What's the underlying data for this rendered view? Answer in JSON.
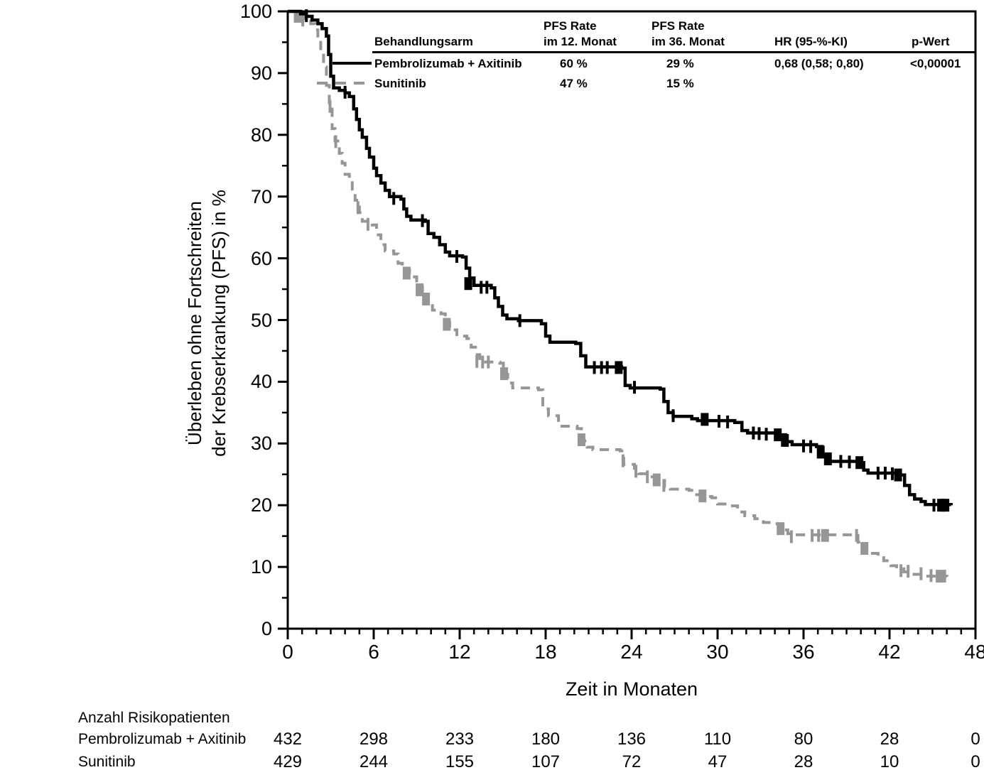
{
  "legend_table": {
    "headers": {
      "arm": "Behandlungsarm",
      "pfs12_line1": "PFS Rate",
      "pfs12_line2": "im 12. Monat",
      "pfs36_line1": "PFS Rate",
      "pfs36_line2": "im 36. Monat",
      "hr": "HR (95-%-KI)",
      "p": "p-Wert"
    },
    "rows": [
      {
        "label": "Pembrolizumab + Axitinib",
        "pfs12": "60 %",
        "pfs36": "29 %",
        "hr": "0,68 (0,58; 0,80)",
        "p": "<0,00001",
        "line_style": "solid",
        "color": "#000000"
      },
      {
        "label": "Sunitinib",
        "pfs12": "47 %",
        "pfs36": "15 %",
        "hr": "",
        "p": "",
        "line_style": "dashed",
        "color": "#969696"
      }
    ]
  },
  "axes": {
    "x": {
      "label": "Zeit in Monaten",
      "min": 0,
      "max": 48,
      "major_ticks": [
        0,
        6,
        12,
        18,
        24,
        30,
        36,
        42,
        48
      ],
      "minor_step": 1
    },
    "y": {
      "label_line1": "Überleben ohne Fortschreiten",
      "label_line2": "der Krebserkrankung (PFS) in %",
      "min": 0,
      "max": 100,
      "major_ticks": [
        0,
        10,
        20,
        30,
        40,
        50,
        60,
        70,
        80,
        90,
        100
      ],
      "minor_step": 5
    }
  },
  "chart_data": {
    "type": "line",
    "subtype": "kaplan-meier-step",
    "title": "",
    "xlabel": "Zeit in Monaten",
    "ylabel": "Überleben ohne Fortschreiten der Krebserkrankung (PFS) in %",
    "xlim": [
      0,
      48
    ],
    "ylim": [
      0,
      100
    ],
    "grid": false,
    "legend_position": "top",
    "series": [
      {
        "name": "Sunitinib",
        "color": "#969696",
        "style": "dashed",
        "pfs_rate_12m": "47 %",
        "pfs_rate_36m": "15 %",
        "points": [
          [
            0,
            100
          ],
          [
            0.8,
            99.4
          ],
          [
            1.2,
            98.8
          ],
          [
            1.6,
            98
          ],
          [
            1.9,
            97
          ],
          [
            2.1,
            96
          ],
          [
            2.3,
            93.5
          ],
          [
            2.5,
            91
          ],
          [
            2.7,
            88
          ],
          [
            2.9,
            84.5
          ],
          [
            3.1,
            81
          ],
          [
            3.3,
            79
          ],
          [
            3.6,
            77
          ],
          [
            3.8,
            75.4
          ],
          [
            4.0,
            73.6
          ],
          [
            4.3,
            73
          ],
          [
            4.5,
            71.2
          ],
          [
            4.7,
            69.4
          ],
          [
            5.0,
            67.4
          ],
          [
            5.2,
            66
          ],
          [
            5.9,
            65.4
          ],
          [
            6.2,
            63.8
          ],
          [
            6.5,
            62.2
          ],
          [
            6.8,
            61.2
          ],
          [
            7.4,
            60.7
          ],
          [
            7.7,
            59.2
          ],
          [
            8.0,
            58.2
          ],
          [
            8.5,
            57
          ],
          [
            9.0,
            55.4
          ],
          [
            9.4,
            54
          ],
          [
            9.8,
            52.8
          ],
          [
            10.1,
            51.6
          ],
          [
            10.7,
            51
          ],
          [
            11.0,
            49.6
          ],
          [
            11.3,
            48.4
          ],
          [
            11.8,
            47.4
          ],
          [
            12.5,
            47
          ],
          [
            12.8,
            45.6
          ],
          [
            13.1,
            44.4
          ],
          [
            13.4,
            43.2
          ],
          [
            14.8,
            43
          ],
          [
            15.05,
            41.2
          ],
          [
            15.35,
            39.8
          ],
          [
            15.7,
            39
          ],
          [
            17.5,
            38.7
          ],
          [
            17.8,
            35.6
          ],
          [
            18.2,
            34.5
          ],
          [
            18.9,
            32.8
          ],
          [
            20.2,
            32.4
          ],
          [
            20.5,
            30.4
          ],
          [
            20.9,
            29.4
          ],
          [
            21.3,
            29
          ],
          [
            23.2,
            28.8
          ],
          [
            23.45,
            26.6
          ],
          [
            24.2,
            26
          ],
          [
            24.5,
            25.1
          ],
          [
            25.2,
            24.6
          ],
          [
            25.8,
            24
          ],
          [
            26.3,
            23
          ],
          [
            26.7,
            22.6
          ],
          [
            28.0,
            22.4
          ],
          [
            28.3,
            21.7
          ],
          [
            28.9,
            21.4
          ],
          [
            29.6,
            21.2
          ],
          [
            30.0,
            20.2
          ],
          [
            30.9,
            19.9
          ],
          [
            31.4,
            18.9
          ],
          [
            31.9,
            18.3
          ],
          [
            32.6,
            17.8
          ],
          [
            33.2,
            17.2
          ],
          [
            33.9,
            17
          ],
          [
            34.4,
            16
          ],
          [
            34.9,
            15.4
          ],
          [
            35.4,
            15.2
          ],
          [
            39.4,
            15.1
          ],
          [
            39.8,
            14
          ],
          [
            40.1,
            12.9
          ],
          [
            40.4,
            12.2
          ],
          [
            41.2,
            11.8
          ],
          [
            41.6,
            11
          ],
          [
            42.1,
            10.2
          ],
          [
            42.5,
            9.7
          ],
          [
            43.0,
            9.2
          ],
          [
            43.6,
            8.8
          ],
          [
            44.3,
            8.5
          ],
          [
            46.0,
            8.4
          ]
        ],
        "censor_marks": [
          [
            0.7,
            99.2,
            1
          ],
          [
            1.05,
            98.6,
            0
          ],
          [
            2.95,
            84.6,
            0
          ],
          [
            3.35,
            78.9,
            0
          ],
          [
            4.9,
            68.2,
            0
          ],
          [
            5.6,
            65.5,
            0
          ],
          [
            8.3,
            57.6,
            1
          ],
          [
            9.2,
            54.9,
            1
          ],
          [
            9.65,
            53.4,
            1
          ],
          [
            11.1,
            49.3,
            1
          ],
          [
            13.2,
            43.3,
            0
          ],
          [
            13.6,
            43.2,
            0
          ],
          [
            14.0,
            43.2,
            0
          ],
          [
            15.1,
            41.3,
            1
          ],
          [
            20.5,
            30.6,
            1
          ],
          [
            23.4,
            27.2,
            0
          ],
          [
            24.3,
            25.5,
            0
          ],
          [
            25.1,
            24.6,
            0
          ],
          [
            25.75,
            24.1,
            1
          ],
          [
            26.25,
            23.2,
            0
          ],
          [
            28.95,
            21.5,
            1
          ],
          [
            34.4,
            16.2,
            1
          ],
          [
            35.15,
            14.9,
            0
          ],
          [
            36.6,
            15.1,
            0
          ],
          [
            37.05,
            15.1,
            0
          ],
          [
            37.5,
            15.1,
            1
          ],
          [
            39.7,
            15.1,
            0
          ],
          [
            40.25,
            13,
            1
          ],
          [
            42.8,
            9.4,
            0
          ],
          [
            43.3,
            9.3,
            0
          ],
          [
            44.2,
            8.9,
            0
          ],
          [
            44.9,
            8.6,
            0
          ],
          [
            45.5,
            8.5,
            1
          ],
          [
            45.85,
            8.5,
            0
          ]
        ]
      },
      {
        "name": "Pembrolizumab + Axitinib",
        "color": "#000000",
        "style": "solid",
        "pfs_rate_12m": "60 %",
        "pfs_rate_36m": "29 %",
        "hr": "0,68 (0,58; 0,80)",
        "p_value": "<0,00001",
        "points": [
          [
            0,
            100
          ],
          [
            0.9,
            99.6
          ],
          [
            1.3,
            99.2
          ],
          [
            1.7,
            98.6
          ],
          [
            2.1,
            98
          ],
          [
            2.4,
            97.2
          ],
          [
            2.7,
            96
          ],
          [
            2.85,
            93
          ],
          [
            3.0,
            89.5
          ],
          [
            3.2,
            87.6
          ],
          [
            3.6,
            87.2
          ],
          [
            4.0,
            86.8
          ],
          [
            4.3,
            86.2
          ],
          [
            4.6,
            84.2
          ],
          [
            4.8,
            82.5
          ],
          [
            5.0,
            80.8
          ],
          [
            5.2,
            79.6
          ],
          [
            5.5,
            77.8
          ],
          [
            5.7,
            76.4
          ],
          [
            6.0,
            74.6
          ],
          [
            6.2,
            73.4
          ],
          [
            6.5,
            72.2
          ],
          [
            6.8,
            71
          ],
          [
            7.1,
            70
          ],
          [
            7.9,
            69.6
          ],
          [
            8.1,
            68
          ],
          [
            8.3,
            66.8
          ],
          [
            8.6,
            66.2
          ],
          [
            9.6,
            66
          ],
          [
            9.8,
            64
          ],
          [
            10.2,
            63.4
          ],
          [
            10.6,
            62.2
          ],
          [
            11.0,
            61
          ],
          [
            11.3,
            60.4
          ],
          [
            12.2,
            60.2
          ],
          [
            12.45,
            58.4
          ],
          [
            12.7,
            56.8
          ],
          [
            13.0,
            55.6
          ],
          [
            14.2,
            55.2
          ],
          [
            14.45,
            53.6
          ],
          [
            14.7,
            52.2
          ],
          [
            15.0,
            50.8
          ],
          [
            15.3,
            50.2
          ],
          [
            16.1,
            49.9
          ],
          [
            17.7,
            49.4
          ],
          [
            18.0,
            47.4
          ],
          [
            18.3,
            46.4
          ],
          [
            20.1,
            46.2
          ],
          [
            20.45,
            44.2
          ],
          [
            20.8,
            42.4
          ],
          [
            23.3,
            42.2
          ],
          [
            23.55,
            39.4
          ],
          [
            23.9,
            39
          ],
          [
            26.0,
            38.8
          ],
          [
            26.25,
            36.8
          ],
          [
            26.55,
            35
          ],
          [
            26.9,
            34.4
          ],
          [
            28.2,
            34
          ],
          [
            28.6,
            33.7
          ],
          [
            31.2,
            33.4
          ],
          [
            31.7,
            32.1
          ],
          [
            32.1,
            31.7
          ],
          [
            34.3,
            31.4
          ],
          [
            34.75,
            30.3
          ],
          [
            35.2,
            29.8
          ],
          [
            36.9,
            29.5
          ],
          [
            37.3,
            28.3
          ],
          [
            37.8,
            27.1
          ],
          [
            39.9,
            26.9
          ],
          [
            40.2,
            25.7
          ],
          [
            40.5,
            25.2
          ],
          [
            42.7,
            24.9
          ],
          [
            43.05,
            23.2
          ],
          [
            43.4,
            21.7
          ],
          [
            43.75,
            21
          ],
          [
            44.2,
            20.6
          ],
          [
            44.5,
            20.1
          ],
          [
            46.3,
            20
          ]
        ],
        "censor_marks": [
          [
            1.3,
            99.3,
            0
          ],
          [
            4.0,
            86.9,
            0
          ],
          [
            7.4,
            69.7,
            0
          ],
          [
            9.4,
            66.1,
            0
          ],
          [
            11.8,
            60.3,
            0
          ],
          [
            12.6,
            55.9,
            1
          ],
          [
            13.5,
            55.3,
            0
          ],
          [
            13.9,
            55.3,
            0
          ],
          [
            16.2,
            49.9,
            0
          ],
          [
            21.4,
            42.3,
            0
          ],
          [
            21.9,
            42.3,
            0
          ],
          [
            22.3,
            42.3,
            0
          ],
          [
            23.1,
            42.3,
            1
          ],
          [
            24.2,
            39.1,
            0
          ],
          [
            26.9,
            34.5,
            0
          ],
          [
            29.1,
            33.9,
            1
          ],
          [
            30.1,
            33.6,
            0
          ],
          [
            30.7,
            33.5,
            0
          ],
          [
            32.5,
            31.7,
            0
          ],
          [
            32.9,
            31.6,
            0
          ],
          [
            33.4,
            31.5,
            0
          ],
          [
            34.2,
            31.4,
            1
          ],
          [
            34.7,
            30.5,
            1
          ],
          [
            36.0,
            29.6,
            0
          ],
          [
            36.5,
            29.5,
            0
          ],
          [
            37.2,
            28.6,
            1
          ],
          [
            37.7,
            27.5,
            1
          ],
          [
            38.6,
            27.1,
            0
          ],
          [
            39.2,
            27,
            0
          ],
          [
            39.9,
            26.9,
            1
          ],
          [
            41.2,
            25.2,
            0
          ],
          [
            41.7,
            25.2,
            0
          ],
          [
            42.2,
            25.1,
            0
          ],
          [
            42.6,
            24.9,
            1
          ],
          [
            45.1,
            20,
            0
          ],
          [
            45.6,
            20,
            1
          ],
          [
            45.9,
            20,
            1
          ]
        ]
      }
    ]
  },
  "risk_table": {
    "title": "Anzahl Risikopatienten",
    "time_points": [
      0,
      6,
      12,
      18,
      24,
      30,
      36,
      42,
      48
    ],
    "rows": [
      {
        "label": "Pembrolizumab + Axitinib",
        "counts": [
          "432",
          "298",
          "233",
          "180",
          "136",
          "110",
          "80",
          "28",
          "0"
        ]
      },
      {
        "label": "Sunitinib",
        "counts": [
          "429",
          "244",
          "155",
          "107",
          "72",
          "47",
          "28",
          "10",
          "0"
        ]
      }
    ]
  },
  "colors": {
    "pembrolizumab_axitinib": "#000000",
    "sunitinib": "#969696",
    "axis": "#000000",
    "background": "#ffffff"
  }
}
